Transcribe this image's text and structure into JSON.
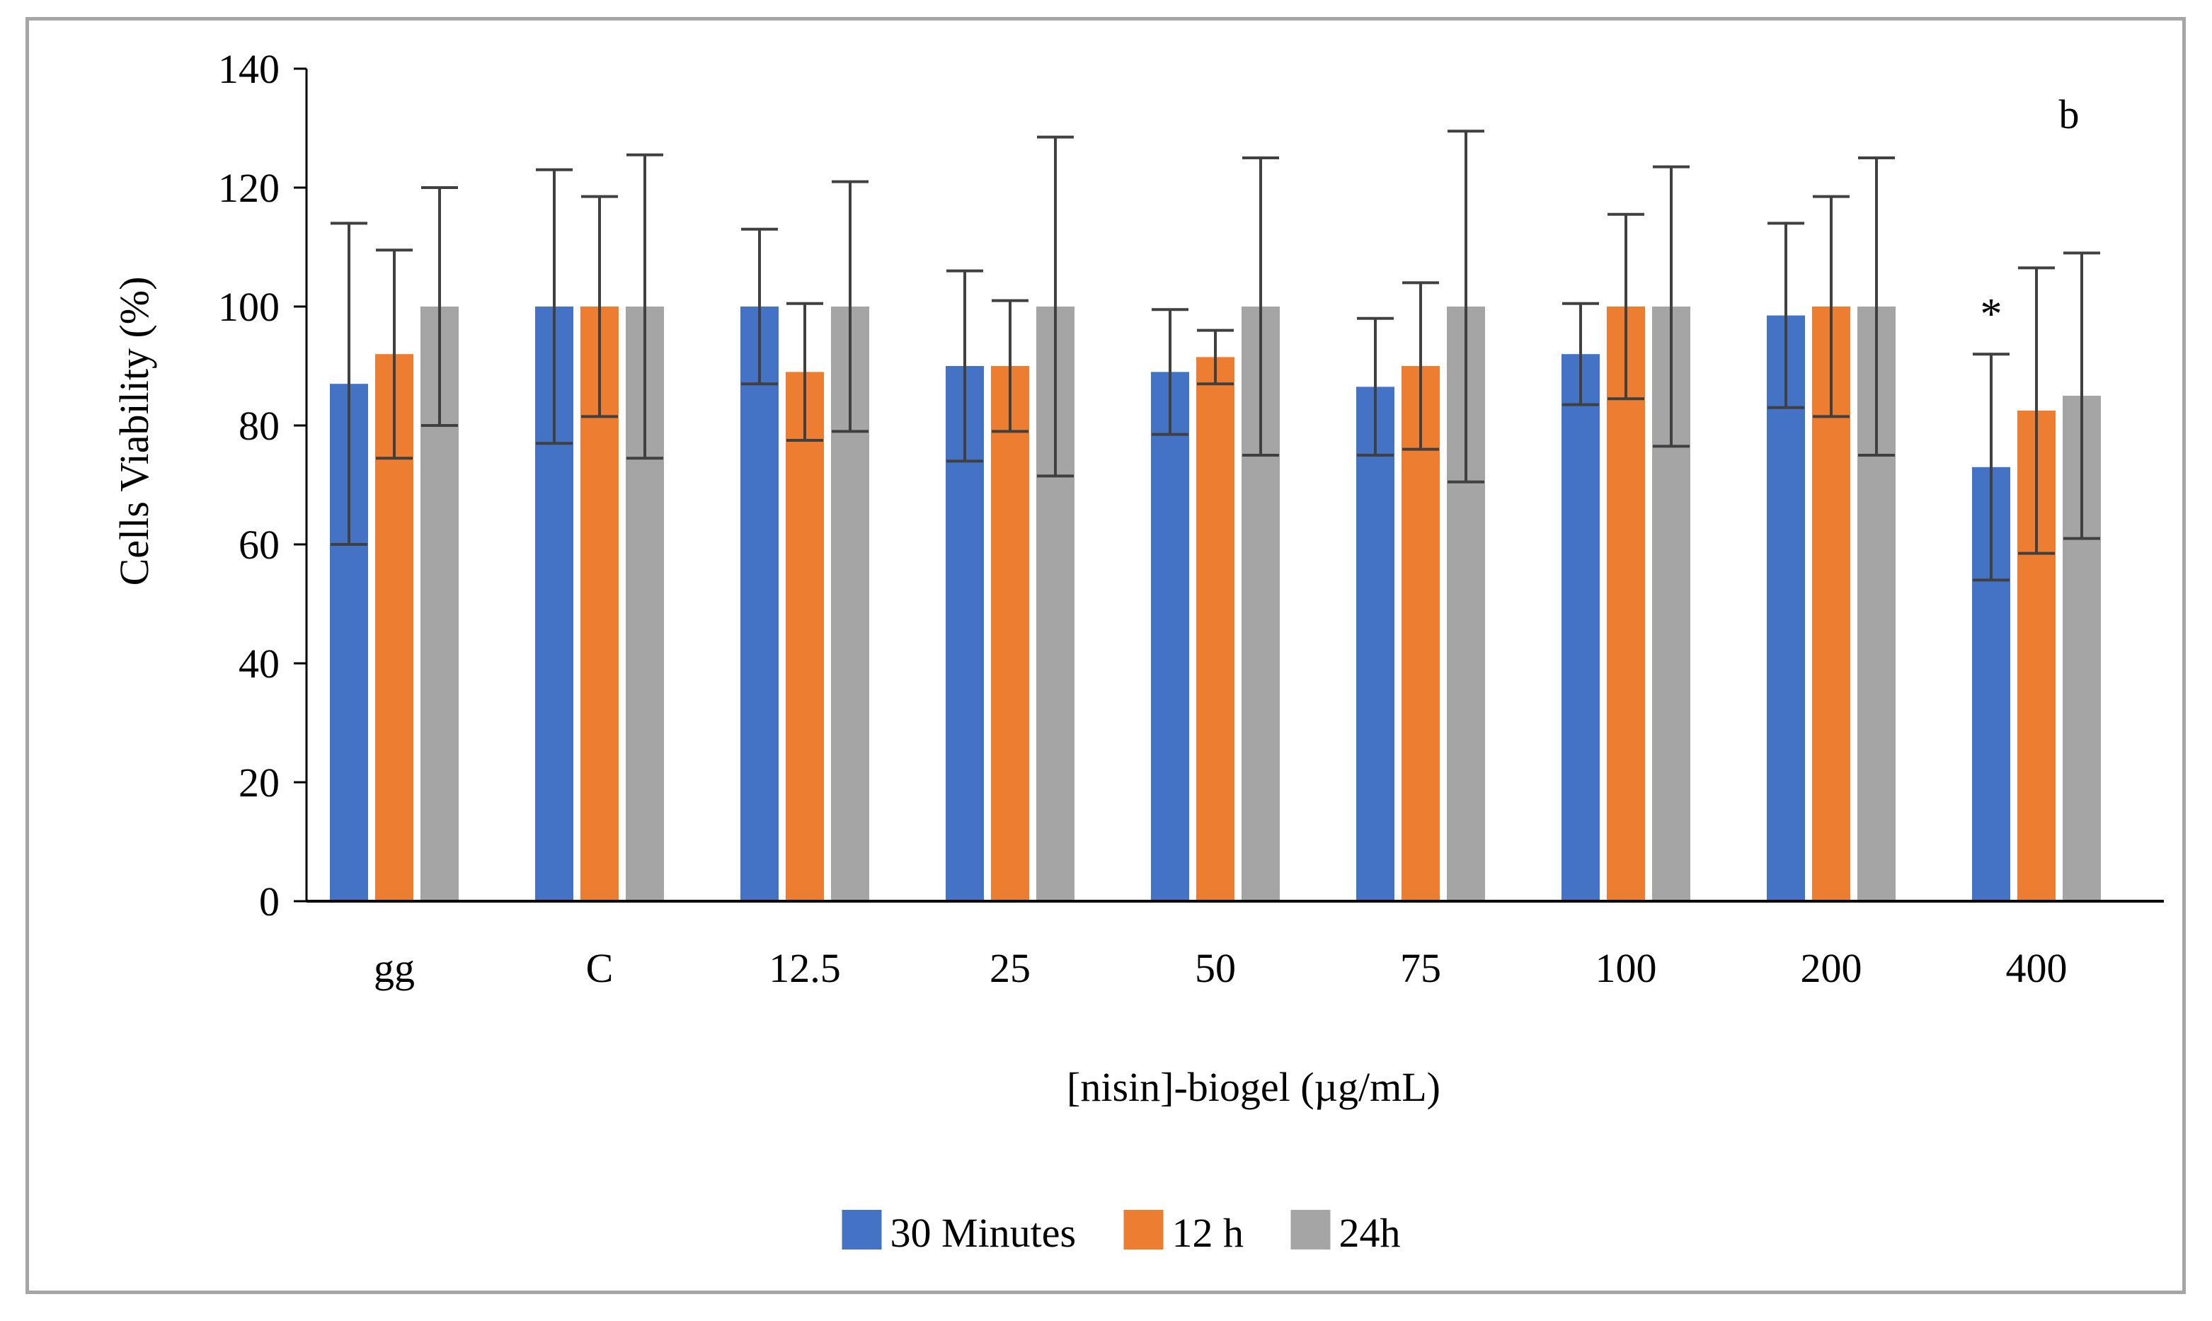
{
  "chart_data": {
    "type": "bar",
    "panel_label": "b",
    "title": "",
    "xlabel": "[nisin]-biogel (µg/mL)",
    "ylabel": "Cells Viability (%)",
    "ylim": [
      0,
      140
    ],
    "yticks": [
      0,
      20,
      40,
      60,
      80,
      100,
      120,
      140
    ],
    "categories": [
      "gg",
      "C",
      "12.5",
      "25",
      "50",
      "75",
      "100",
      "200",
      "400"
    ],
    "legend_position": "bottom",
    "series": [
      {
        "name": "30 Minutes",
        "color": "#4472c4",
        "values": [
          87,
          100,
          100,
          90,
          89,
          86.5,
          92,
          98.5,
          73
        ],
        "errors": [
          27,
          23,
          13,
          16,
          10.5,
          11.5,
          8.5,
          15.5,
          19
        ]
      },
      {
        "name": "12 h",
        "color": "#ed7d31",
        "values": [
          92,
          100,
          89,
          90,
          91.5,
          90,
          100,
          100,
          82.5
        ],
        "errors": [
          17.5,
          18.5,
          11.5,
          11,
          4.5,
          14,
          15.5,
          18.5,
          24
        ]
      },
      {
        "name": "24h",
        "color": "#a5a5a5",
        "values": [
          100,
          100,
          100,
          100,
          100,
          100,
          100,
          100,
          85
        ],
        "errors": [
          20,
          25.5,
          21,
          28.5,
          25,
          29.5,
          23.5,
          25,
          24
        ]
      }
    ],
    "annotations": [
      {
        "text": "*",
        "category": "400",
        "series": "30 Minutes"
      }
    ],
    "error_bar_color": "#404040",
    "axis_color": "#000000"
  }
}
